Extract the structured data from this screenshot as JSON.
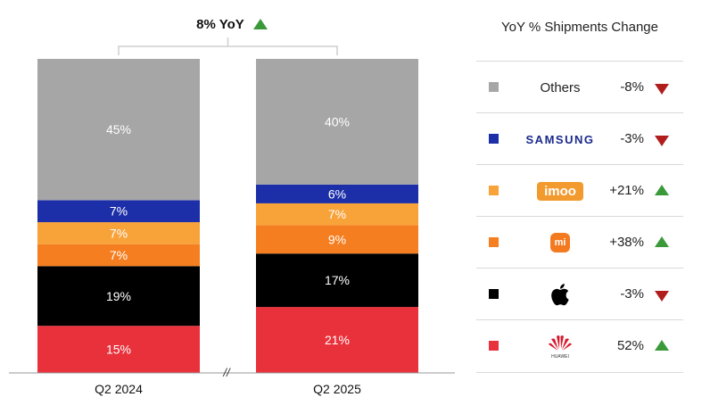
{
  "chart_data": {
    "type": "bar",
    "stacked": true,
    "percent_stacked": true,
    "categories": [
      "Q2 2024",
      "Q2 2025"
    ],
    "series": [
      {
        "name": "Huawei",
        "values": [
          15,
          21
        ],
        "labels": [
          "15%",
          "21%"
        ],
        "color": "#e8313b",
        "label_color": "#ffffff"
      },
      {
        "name": "Apple",
        "values": [
          19,
          17
        ],
        "labels": [
          "19%",
          "17%"
        ],
        "color": "#000000",
        "label_color": "#ffffff"
      },
      {
        "name": "Xiaomi",
        "values": [
          7,
          9
        ],
        "labels": [
          "7%",
          "9%"
        ],
        "color": "#f57e20",
        "label_color": "#ffffff"
      },
      {
        "name": "imoo",
        "values": [
          7,
          7
        ],
        "labels": [
          "7%",
          "7%"
        ],
        "color": "#f8a23a",
        "label_color": "#ffffff"
      },
      {
        "name": "Samsung",
        "values": [
          7,
          6
        ],
        "labels": [
          "7%",
          "6%"
        ],
        "color": "#1d2fa8",
        "label_color": "#ffffff"
      },
      {
        "name": "Others",
        "values": [
          45,
          40
        ],
        "labels": [
          "45%",
          "40%"
        ],
        "color": "#a6a6a6",
        "label_color": "#ffffff"
      }
    ],
    "annotation": "8% YoY",
    "annotation_arrow": "up",
    "axis_break": "//",
    "ylim": [
      0,
      100
    ],
    "legend_position": "right"
  },
  "legend": {
    "title": "YoY % Shipments Change",
    "rows": [
      {
        "brand": "Others",
        "logo": "text",
        "change": "-8%",
        "direction": "down",
        "color": "#a6a6a6"
      },
      {
        "brand": "SAMSUNG",
        "logo": "samsung-wordmark",
        "change": "-3%",
        "direction": "down",
        "color": "#1d2fa8"
      },
      {
        "brand": "imoo",
        "logo": "imoo-badge",
        "change": "+21%",
        "direction": "up",
        "color": "#f8a23a"
      },
      {
        "brand": "mi",
        "logo": "xiaomi-mi-logo",
        "change": "+38%",
        "direction": "up",
        "color": "#f57e20"
      },
      {
        "brand": "",
        "logo": "apple-logo",
        "change": "-3%",
        "direction": "down",
        "color": "#000000"
      },
      {
        "brand": "HUAWEI",
        "logo": "huawei-logo",
        "change": "52%",
        "direction": "up",
        "color": "#e8313b"
      }
    ]
  },
  "colors": {
    "up_arrow": "#3a9a3a",
    "down_arrow": "#b11d1d"
  }
}
